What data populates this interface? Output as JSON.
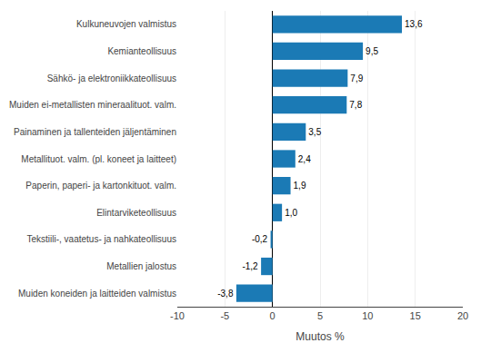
{
  "chart_data": {
    "type": "bar",
    "orientation": "horizontal",
    "categories": [
      "Muiden koneiden ja laitteiden valmistus",
      "Metallien jalostus",
      "Tekstiili-, vaatetus- ja nahkateollisuus",
      "Elintarviketeollisuus",
      "Paperin, paperi- ja kartonkituot. valm.",
      "Metallituot. valm. (pl. koneet ja laitteet)",
      "Painaminen ja tallenteiden jäljentäminen",
      "Muiden ei-metallisten mineraalituot. valm.",
      "Sähkö- ja elektroniikkateollisuus",
      "Kemianteollisuus",
      "Kulkuneuvojen valmistus"
    ],
    "values": [
      -3.8,
      -1.2,
      -0.2,
      1.0,
      1.9,
      2.4,
      3.5,
      7.8,
      7.9,
      9.5,
      13.6
    ],
    "value_labels": [
      "-3,8",
      "-1,2",
      "-0,2",
      "1,0",
      "1,9",
      "2,4",
      "3,5",
      "7,8",
      "7,9",
      "9,5",
      "13,6"
    ],
    "data_labels": true,
    "color": "#1b7ab5",
    "xlabel": "Muutos %",
    "xlim": [
      -10,
      20
    ],
    "xticks": [
      -10,
      -5,
      0,
      5,
      10,
      15,
      20
    ],
    "grid": true
  }
}
